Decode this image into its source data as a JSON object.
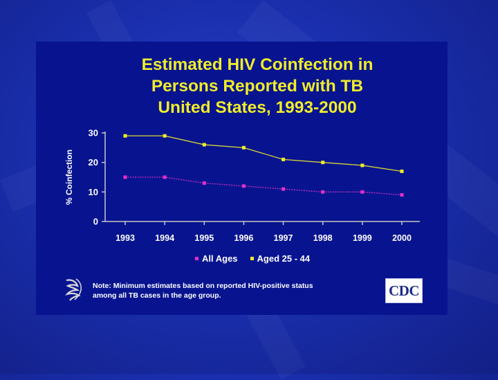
{
  "slide": {
    "title_lines": [
      "Estimated HIV Coinfection in",
      "Persons Reported with TB",
      "United States, 1993-2000"
    ],
    "note_lines": [
      "Note: Minimum estimates based on reported HIV-positive status",
      "among all TB cases in the age group."
    ],
    "logo_text": "CDC",
    "hhs_logo": "hhs-eagle-icon",
    "colors": {
      "background": "#1a2fae",
      "panel": "#08148f",
      "title": "#f0ec2a",
      "axis": "#c8c8c8",
      "all_ages": "#e030c8",
      "aged_25_44": "#f0ec2a"
    }
  },
  "chart_data": {
    "type": "line",
    "title": "Estimated HIV Coinfection in Persons Reported with TB United States, 1993-2000",
    "xlabel": "",
    "ylabel": "% Coinfection",
    "x": [
      "1993",
      "1994",
      "1995",
      "1996",
      "1997",
      "1998",
      "1999",
      "2000"
    ],
    "yticks": [
      "0",
      "10",
      "20",
      "30"
    ],
    "ylim": [
      0,
      30
    ],
    "grid": false,
    "legend_position": "bottom",
    "series": [
      {
        "name": "All Ages",
        "color": "#e030c8",
        "values": [
          15,
          15,
          13,
          12,
          11,
          10,
          10,
          9
        ]
      },
      {
        "name": "Aged 25 - 44",
        "color": "#f0ec2a",
        "values": [
          29,
          29,
          26,
          25,
          21,
          20,
          19,
          17
        ]
      }
    ]
  }
}
